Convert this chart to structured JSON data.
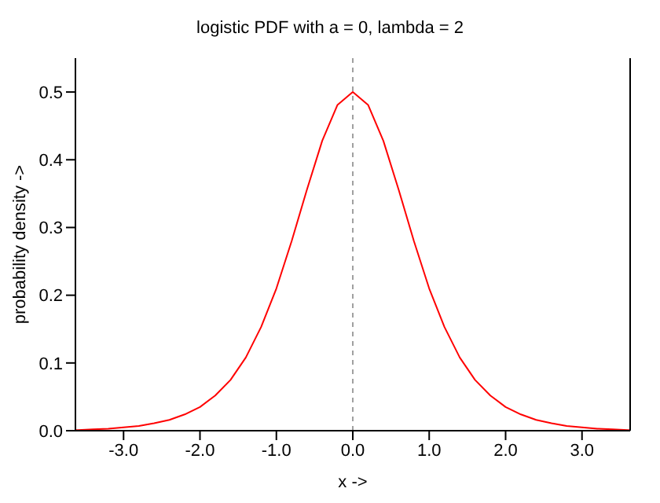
{
  "chart_data": {
    "type": "line",
    "title": "logistic PDF with a = 0, lambda = 2",
    "xlabel": "x ->",
    "ylabel": "probability density ->",
    "x": [
      -3.63,
      -3.6,
      -3.4,
      -3.2,
      -3.0,
      -2.8,
      -2.6,
      -2.4,
      -2.2,
      -2.0,
      -1.8,
      -1.6,
      -1.4,
      -1.2,
      -1.0,
      -0.8,
      -0.6,
      -0.4,
      -0.2,
      0,
      0.2,
      0.4,
      0.6,
      0.8,
      1.0,
      1.2,
      1.4,
      1.6,
      1.8,
      2.0,
      2.2,
      2.4,
      2.6,
      2.8,
      3.0,
      3.2,
      3.4,
      3.6,
      3.63
    ],
    "series": [
      {
        "color": "#ff0000",
        "values": [
          0.001,
          0.001,
          0.002,
          0.003,
          0.005,
          0.007,
          0.011,
          0.016,
          0.024,
          0.035,
          0.052,
          0.075,
          0.108,
          0.153,
          0.21,
          0.28,
          0.356,
          0.428,
          0.481,
          0.5,
          0.481,
          0.428,
          0.356,
          0.28,
          0.21,
          0.153,
          0.108,
          0.075,
          0.052,
          0.035,
          0.024,
          0.016,
          0.011,
          0.007,
          0.005,
          0.003,
          0.002,
          0.001,
          0.001
        ]
      }
    ],
    "xlim": [
      -3.63,
      3.63
    ],
    "xticks": [
      {
        "value": -3,
        "label": "-3.0"
      },
      {
        "value": -2,
        "label": "-2.0"
      },
      {
        "value": -1,
        "label": "-1.0"
      },
      {
        "value": 0,
        "label": "0.0"
      },
      {
        "value": 1,
        "label": "1.0"
      },
      {
        "value": 2,
        "label": "2.0"
      },
      {
        "value": 3,
        "label": "3.0"
      }
    ],
    "ylim": [
      0,
      0.55
    ],
    "yticks": [
      {
        "value": 0,
        "label": "0.0"
      },
      0.1,
      0.2,
      0.3,
      0.4,
      0.5
    ],
    "ref_lines": [
      {
        "axis": "x",
        "value": 0,
        "color": "#a0a0a0",
        "line_style": "dashed"
      }
    ],
    "grid": false,
    "legend": false,
    "marker": "none",
    "line_style": "solid"
  }
}
